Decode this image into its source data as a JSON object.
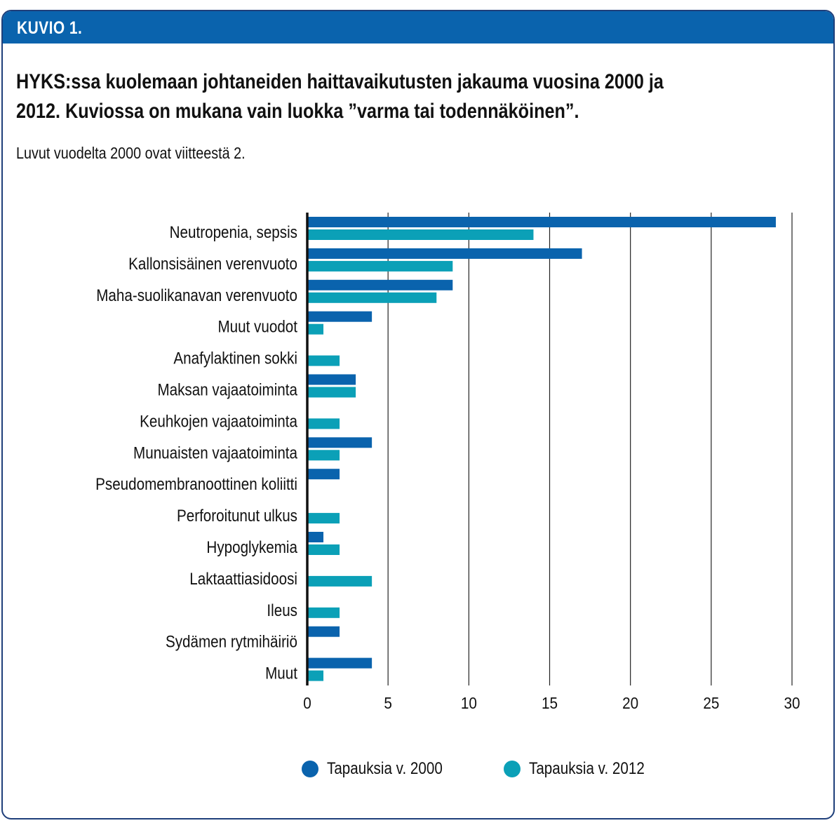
{
  "header": {
    "label": "KUVIO 1."
  },
  "title": "HYKS:ssa kuolemaan johtaneiden haittavaikutusten jakauma vuosina 2000 ja\n2012. Kuviossa on mukana vain luokka ”varma tai todennäköinen”.",
  "subtitle": "Luvut vuodelta 2000 ovat viitteestä 2.",
  "colors": {
    "s2000": "#0a63ad",
    "s2012": "#0ba0b7",
    "header": "#0a63ad",
    "grid": "#222222"
  },
  "chart_data": {
    "type": "bar",
    "orientation": "horizontal",
    "categories": [
      "Neutropenia, sepsis",
      "Kallonsisäinen verenvuoto",
      "Maha-suolikanavan verenvuoto",
      "Muut vuodot",
      "Anafylaktinen sokki",
      "Maksan vajaatoiminta",
      "Keuhkojen vajaatoiminta",
      "Munuaisten vajaatoiminta",
      "Pseudomembranoottinen koliitti",
      "Perforoitunut ulkus",
      "Hypoglykemia",
      "Laktaattiasidoosi",
      "Ileus",
      "Sydämen rytmihäiriö",
      "Muut"
    ],
    "series": [
      {
        "name": "Tapauksia v. 2000",
        "values": [
          29,
          17,
          9,
          4,
          0,
          3,
          0,
          4,
          2,
          0,
          1,
          0,
          0,
          2,
          4
        ]
      },
      {
        "name": "Tapauksia v. 2012",
        "values": [
          14,
          9,
          8,
          1,
          2,
          3,
          2,
          2,
          0,
          2,
          2,
          4,
          2,
          0,
          1
        ]
      }
    ],
    "xlim": [
      0,
      30
    ],
    "xticks": [
      0,
      5,
      10,
      15,
      20,
      25,
      30
    ],
    "grid": "vertical",
    "legend": "bottom"
  }
}
